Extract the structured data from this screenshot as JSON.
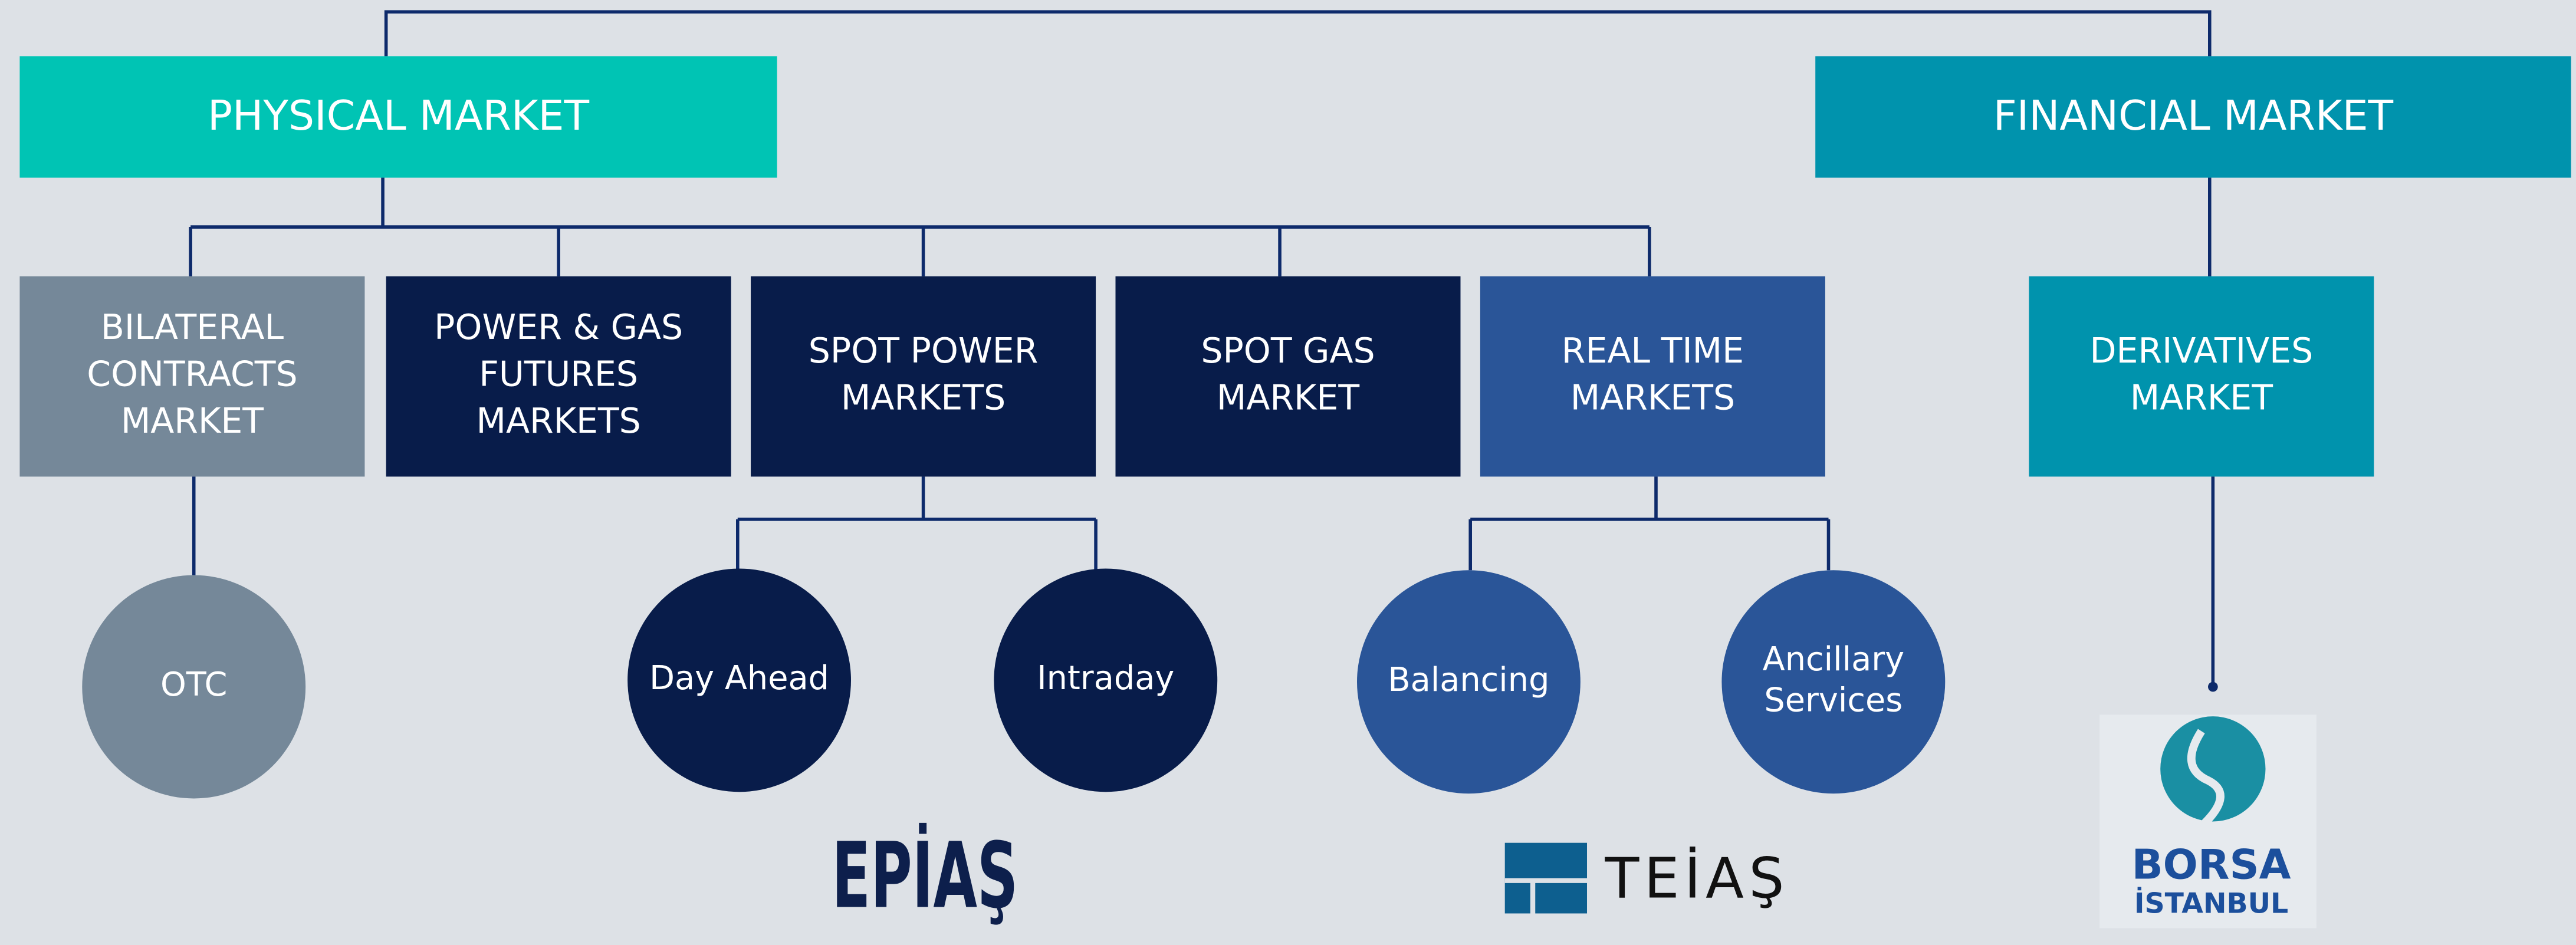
{
  "top_level": [
    {
      "lines": [
        "PHYSICAL MARKET"
      ]
    },
    {
      "lines": [
        "FINANCIAL MARKET"
      ]
    }
  ],
  "markets": [
    {
      "lines": [
        "BILATERAL",
        "CONTRACTS",
        "MARKET"
      ]
    },
    {
      "lines": [
        "POWER & GAS",
        "FUTURES",
        "MARKETS"
      ]
    },
    {
      "lines": [
        "SPOT POWER",
        "MARKETS"
      ]
    },
    {
      "lines": [
        "SPOT GAS",
        "MARKET"
      ]
    },
    {
      "lines": [
        "REAL TIME",
        "MARKETS"
      ]
    },
    {
      "lines": [
        "DERIVATIVES",
        "MARKET"
      ]
    }
  ],
  "sub_markets": [
    {
      "lines": [
        "OTC"
      ]
    },
    {
      "lines": [
        "Day Ahead"
      ]
    },
    {
      "lines": [
        "Intraday"
      ]
    },
    {
      "lines": [
        "Balancing"
      ]
    },
    {
      "lines": [
        "Ancillary",
        "Services"
      ]
    }
  ],
  "logos": {
    "epias": "EPİAŞ",
    "teias": "TEİAŞ",
    "borsa": [
      "BORSA",
      "İSTANBUL"
    ]
  }
}
